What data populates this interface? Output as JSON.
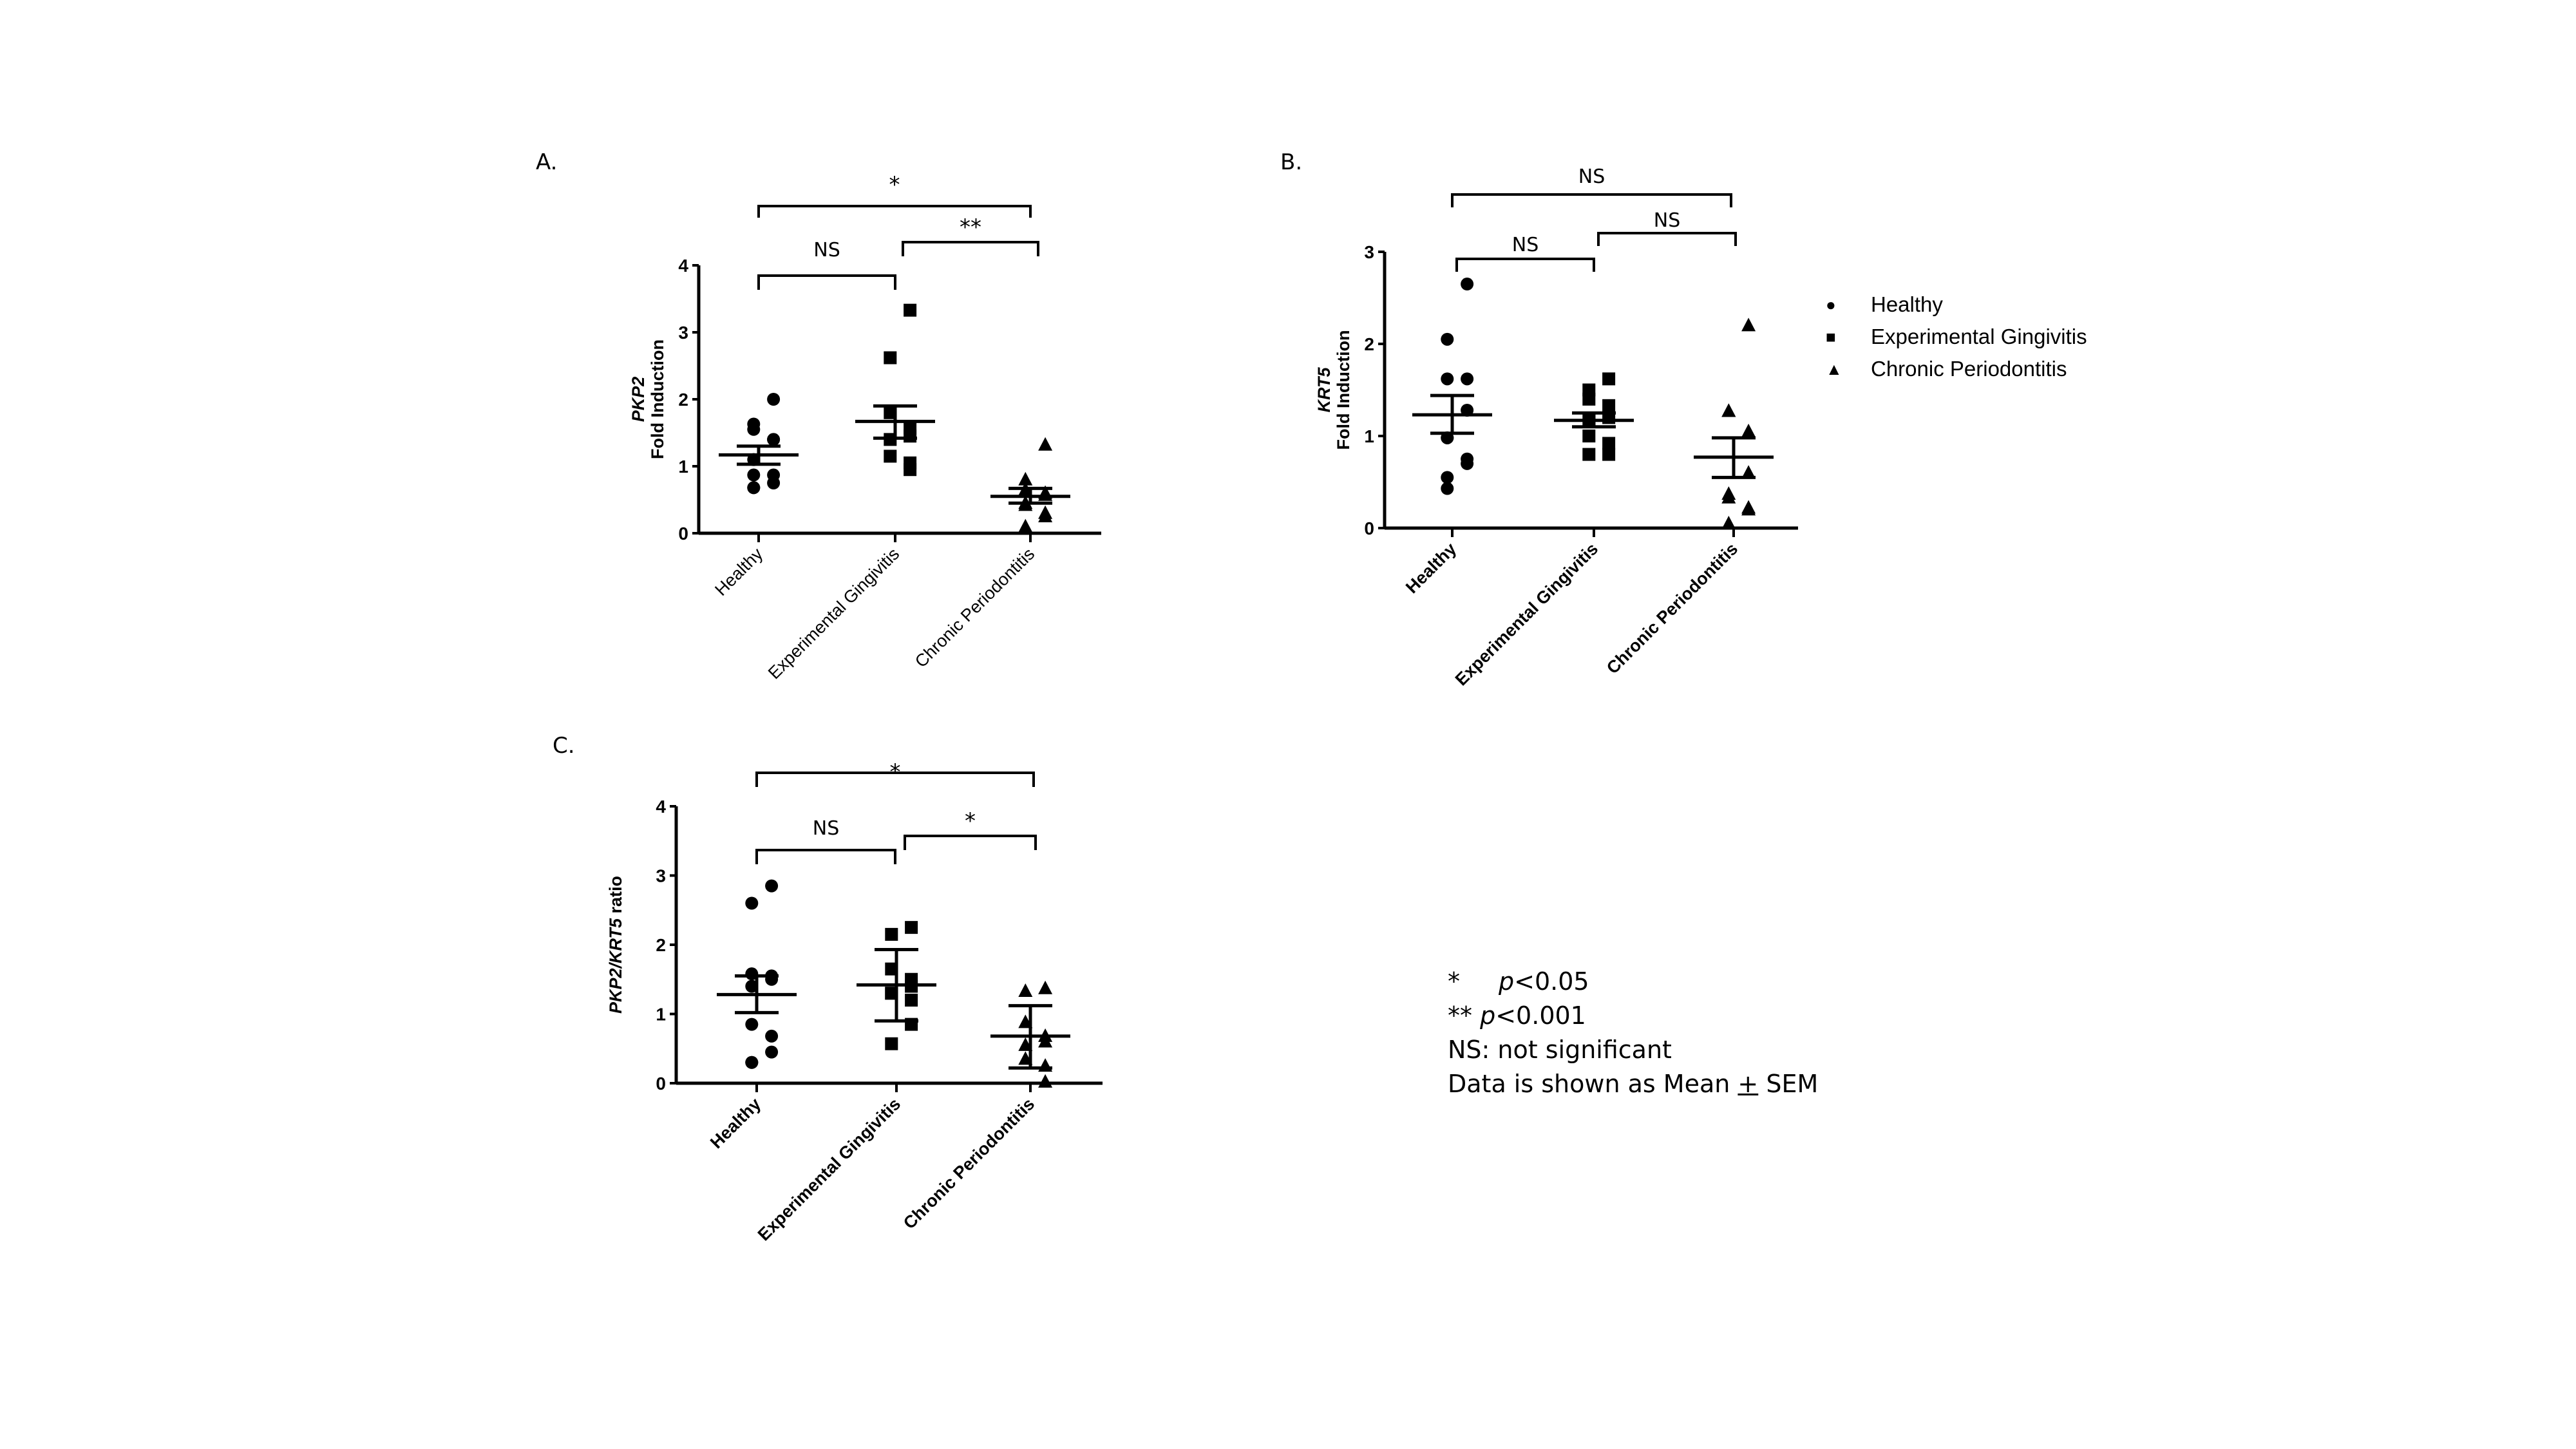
{
  "panels": {
    "A": {
      "label": "A."
    },
    "B": {
      "label": "B."
    },
    "C": {
      "label": "C."
    }
  },
  "legend": {
    "items": [
      {
        "symbol": "●",
        "label": "Healthy"
      },
      {
        "symbol": "■",
        "label": "Experimental Gingivitis"
      },
      {
        "symbol": "▲",
        "label": "Chronic Periodontitis"
      }
    ]
  },
  "notes": {
    "line1_star": "*",
    "line1_p": "p",
    "line1_val": "<0.05",
    "line2_star": "**",
    "line2_p": "p",
    "line2_val": "<0.001",
    "line3": "NS: not significant",
    "line4_pre": "Data is shown as Mean ",
    "line4_pm": "+",
    "line4_post": " SEM"
  },
  "chart_data": [
    {
      "id": "A",
      "type": "scatter",
      "title": "",
      "ylabel_italic": "PKP2",
      "ylabel": "Fold Induction",
      "categories": [
        "Healthy",
        "Experimental Gingivitis",
        "Chronic Periodontitis"
      ],
      "yticks": [
        0,
        1,
        2,
        3,
        4
      ],
      "ylim": [
        0,
        4
      ],
      "series": [
        {
          "name": "Healthy",
          "marker": "circle",
          "values": [
            2.0,
            1.63,
            1.55,
            1.4,
            1.4,
            1.1,
            0.87,
            0.87,
            0.75,
            0.68,
            0.68
          ],
          "mean": 1.17,
          "sem_low": 1.03,
          "sem_high": 1.3
        },
        {
          "name": "Experimental Gingivitis",
          "marker": "square",
          "values": [
            3.33,
            2.62,
            1.8,
            1.57,
            1.45,
            1.4,
            1.15,
            1.05,
            0.95
          ],
          "mean": 1.67,
          "sem_low": 1.42,
          "sem_high": 1.9
        },
        {
          "name": "Chronic Periodontitis",
          "marker": "triangle",
          "values": [
            1.32,
            0.8,
            0.65,
            0.6,
            0.57,
            0.45,
            0.42,
            0.3,
            0.25,
            0.1
          ],
          "mean": 0.55,
          "sem_low": 0.45,
          "sem_high": 0.67
        }
      ],
      "significance": [
        {
          "from": "Healthy",
          "to": "Experimental Gingivitis",
          "label": "NS"
        },
        {
          "from": "Experimental Gingivitis",
          "to": "Chronic Periodontitis",
          "label": "**"
        },
        {
          "from": "Healthy",
          "to": "Chronic Periodontitis",
          "label": "*"
        }
      ]
    },
    {
      "id": "B",
      "type": "scatter",
      "title": "",
      "ylabel_italic": "KRT5",
      "ylabel": "Fold Induction",
      "categories": [
        "Healthy",
        "Experimental Gingivitis",
        "Chronic Periodontitis"
      ],
      "yticks": [
        0,
        1,
        2,
        3
      ],
      "ylim": [
        0,
        3
      ],
      "series": [
        {
          "name": "Healthy",
          "marker": "circle",
          "values": [
            2.65,
            2.05,
            1.62,
            1.62,
            1.28,
            0.98,
            0.98,
            0.75,
            0.7,
            0.55,
            0.43
          ],
          "mean": 1.23,
          "sem_low": 1.03,
          "sem_high": 1.44
        },
        {
          "name": "Experimental Gingivitis",
          "marker": "square",
          "values": [
            1.62,
            1.5,
            1.4,
            1.33,
            1.2,
            1.18,
            1.0,
            0.92,
            0.8,
            0.8
          ],
          "mean": 1.17,
          "sem_low": 1.1,
          "sem_high": 1.25
        },
        {
          "name": "Chronic Periodontitis",
          "marker": "triangle",
          "values": [
            2.2,
            1.27,
            1.27,
            1.05,
            0.6,
            0.37,
            0.33,
            0.22,
            0.2,
            0.05
          ],
          "mean": 0.77,
          "sem_low": 0.55,
          "sem_high": 0.98
        }
      ],
      "significance": [
        {
          "from": "Healthy",
          "to": "Experimental Gingivitis",
          "label": "NS"
        },
        {
          "from": "Experimental Gingivitis",
          "to": "Chronic Periodontitis",
          "label": "NS"
        },
        {
          "from": "Healthy",
          "to": "Chronic Periodontitis",
          "label": "NS"
        }
      ]
    },
    {
      "id": "C",
      "type": "scatter",
      "title": "",
      "ylabel_italic": "PKP2/KRT5",
      "ylabel": " ratio",
      "categories": [
        "Healthy",
        "Experimental Gingivitis",
        "Chronic Periodontitis"
      ],
      "yticks": [
        0,
        1,
        2,
        3,
        4
      ],
      "ylim": [
        0,
        4
      ],
      "series": [
        {
          "name": "Healthy",
          "marker": "circle",
          "values": [
            2.85,
            2.6,
            1.58,
            1.55,
            1.5,
            1.4,
            0.85,
            0.68,
            0.45,
            0.3,
            0.3
          ],
          "mean": 1.28,
          "sem_low": 1.02,
          "sem_high": 1.55
        },
        {
          "name": "Experimental Gingivitis",
          "marker": "square",
          "values": [
            2.25,
            2.15,
            1.65,
            1.5,
            1.4,
            1.3,
            1.3,
            1.2,
            0.85,
            0.57
          ],
          "mean": 1.42,
          "sem_low": 0.9,
          "sem_high": 1.93
        },
        {
          "name": "Chronic Periodontitis",
          "marker": "triangle",
          "values": [
            1.37,
            1.33,
            0.88,
            0.68,
            0.6,
            0.55,
            0.35,
            0.25,
            0.02
          ],
          "mean": 0.68,
          "sem_low": 0.22,
          "sem_high": 1.12
        }
      ],
      "significance": [
        {
          "from": "Healthy",
          "to": "Experimental Gingivitis",
          "label": "NS"
        },
        {
          "from": "Experimental Gingivitis",
          "to": "Chronic Periodontitis",
          "label": "*"
        },
        {
          "from": "Healthy",
          "to": "Chronic Periodontitis",
          "label": "*"
        }
      ]
    }
  ]
}
